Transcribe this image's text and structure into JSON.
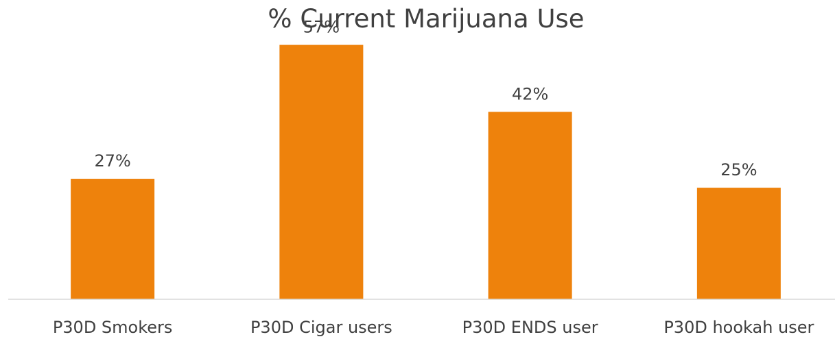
{
  "chart_data": {
    "type": "bar",
    "title": "% Current Marijuana Use",
    "categories": [
      "P30D Smokers",
      "P30D Cigar users",
      "P30D ENDS user",
      "P30D hookah user"
    ],
    "values": [
      27,
      57,
      42,
      25
    ],
    "data_labels": [
      "27%",
      "57%",
      "42%",
      "25%"
    ],
    "bar_color": "#EE820C",
    "axis_color": "#D9D9D9",
    "text_color": "#404040",
    "ylim": [
      0,
      60
    ],
    "grid": false,
    "legend": "none"
  }
}
